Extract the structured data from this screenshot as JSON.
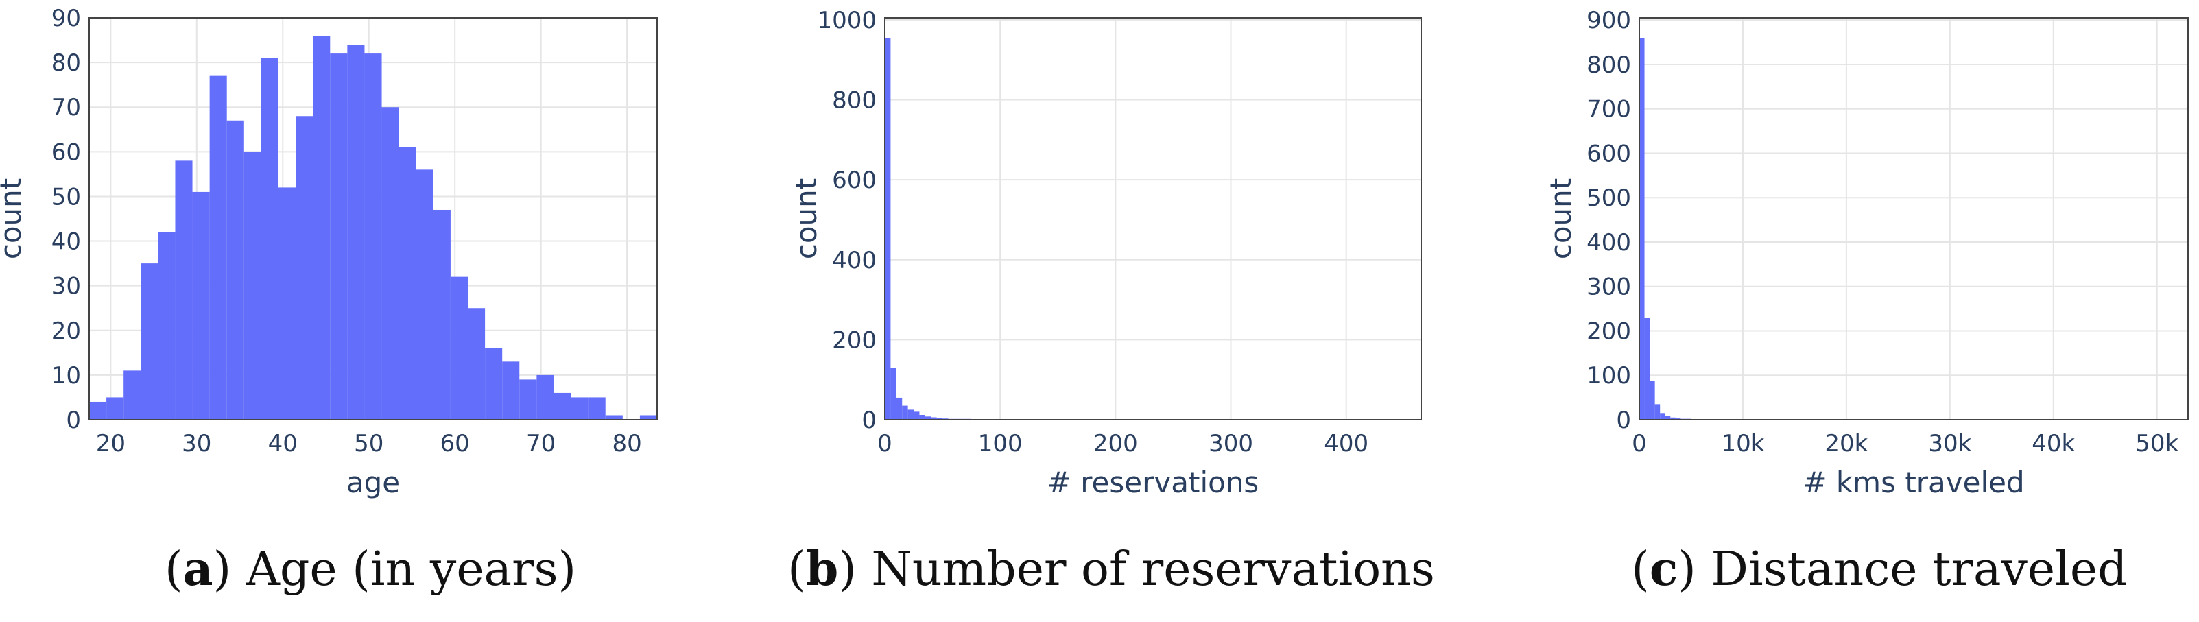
{
  "figure": {
    "colors": {
      "bar": "#636efa",
      "axis_text": "#2a3f5f",
      "grid": "#e5e5e5",
      "frame": "#444444"
    }
  },
  "chart_data": [
    {
      "type": "bar",
      "caption_letter": "a",
      "caption_text": "Age (in years)",
      "xlabel": "age",
      "ylabel": "count",
      "xlim": [
        17.5,
        83.5
      ],
      "ylim": [
        0,
        90
      ],
      "bin_start": 17.5,
      "bin_width": 2,
      "values": [
        4,
        5,
        11,
        35,
        42,
        58,
        51,
        77,
        67,
        60,
        81,
        52,
        68,
        86,
        82,
        84,
        82,
        70,
        61,
        56,
        47,
        32,
        25,
        16,
        13,
        9,
        10,
        6,
        5,
        5,
        1,
        0,
        1
      ],
      "xticks": [
        20,
        30,
        40,
        50,
        60,
        70,
        80
      ],
      "xtick_labels": [
        "20",
        "30",
        "40",
        "50",
        "60",
        "70",
        "80"
      ],
      "yticks": [
        0,
        10,
        20,
        30,
        40,
        50,
        60,
        70,
        80,
        90
      ],
      "ytick_labels": [
        "0",
        "10",
        "20",
        "30",
        "40",
        "50",
        "60",
        "70",
        "80",
        "90"
      ],
      "grid": true
    },
    {
      "type": "bar",
      "caption_letter": "b",
      "caption_text": "Number of reservations",
      "xlabel": "# reservations",
      "ylabel": "count",
      "xlim": [
        0,
        465
      ],
      "ylim": [
        0,
        1005
      ],
      "bin_start": 0,
      "bin_width": 5,
      "values": [
        955,
        130,
        55,
        35,
        25,
        20,
        12,
        8,
        6,
        4,
        3,
        2,
        2,
        2,
        2,
        1,
        1,
        1,
        1,
        1,
        1,
        1,
        1,
        0,
        1
      ],
      "xticks": [
        0,
        100,
        200,
        300,
        400
      ],
      "xtick_labels": [
        "0",
        "100",
        "200",
        "300",
        "400"
      ],
      "yticks": [
        0,
        200,
        400,
        600,
        800,
        1000
      ],
      "ytick_labels": [
        "0",
        "200",
        "400",
        "600",
        "800",
        "1000"
      ],
      "grid": true
    },
    {
      "type": "bar",
      "caption_letter": "c",
      "caption_text": "Distance traveled",
      "xlabel": "# kms traveled",
      "ylabel": "count",
      "xlim": [
        0,
        53000
      ],
      "ylim": [
        0,
        905
      ],
      "bin_start": 0,
      "bin_width": 500,
      "values": [
        860,
        230,
        88,
        35,
        15,
        8,
        5,
        3,
        2,
        2,
        1,
        1,
        1,
        1,
        1,
        1,
        1,
        1,
        1,
        0,
        1
      ],
      "xticks": [
        0,
        10000,
        20000,
        30000,
        40000,
        50000
      ],
      "xtick_labels": [
        "0",
        "10k",
        "20k",
        "30k",
        "40k",
        "50k"
      ],
      "yticks": [
        0,
        100,
        200,
        300,
        400,
        500,
        600,
        700,
        800,
        900
      ],
      "ytick_labels": [
        "0",
        "100",
        "200",
        "300",
        "400",
        "500",
        "600",
        "700",
        "800",
        "900"
      ],
      "grid": true
    }
  ]
}
